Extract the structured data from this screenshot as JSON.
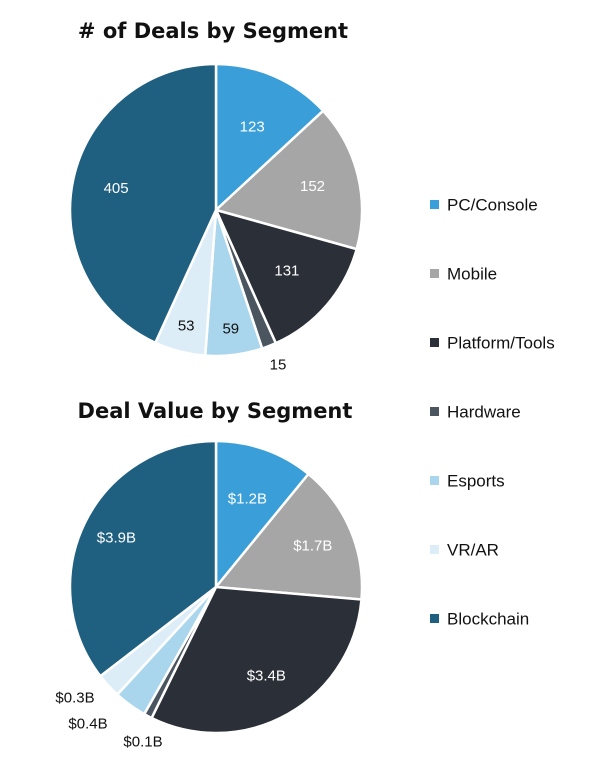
{
  "colors": {
    "PC/Console": "#3a9fd8",
    "Mobile": "#a6a6a6",
    "Platform/Tools": "#2b2f38",
    "Hardware": "#4a5560",
    "Esports": "#a9d6ec",
    "VR/AR": "#dcedf8",
    "Blockchain": "#1f5f80"
  },
  "legend": {
    "items": [
      "PC/Console",
      "Mobile",
      "Platform/Tools",
      "Hardware",
      "Esports",
      "VR/AR",
      "Blockchain"
    ]
  },
  "chart_data": [
    {
      "type": "pie",
      "title": "# of Deals by Segment",
      "categories": [
        "PC/Console",
        "Mobile",
        "Platform/Tools",
        "Hardware",
        "Esports",
        "VR/AR",
        "Blockchain"
      ],
      "values": [
        123,
        152,
        131,
        15,
        59,
        53,
        405
      ],
      "labels": [
        "123",
        "152",
        "131",
        "15",
        "59",
        "53",
        "405"
      ]
    },
    {
      "type": "pie",
      "title": "Deal Value by Segment",
      "categories": [
        "PC/Console",
        "Mobile",
        "Platform/Tools",
        "Hardware",
        "Esports",
        "VR/AR",
        "Blockchain"
      ],
      "values": [
        1.2,
        1.7,
        3.4,
        0.1,
        0.4,
        0.3,
        3.9
      ],
      "labels": [
        "$1.2B",
        "$1.7B",
        "$3.4B",
        "$0.1B",
        "$0.4B",
        "$0.3B",
        "$3.9B"
      ],
      "unit": "B"
    }
  ]
}
